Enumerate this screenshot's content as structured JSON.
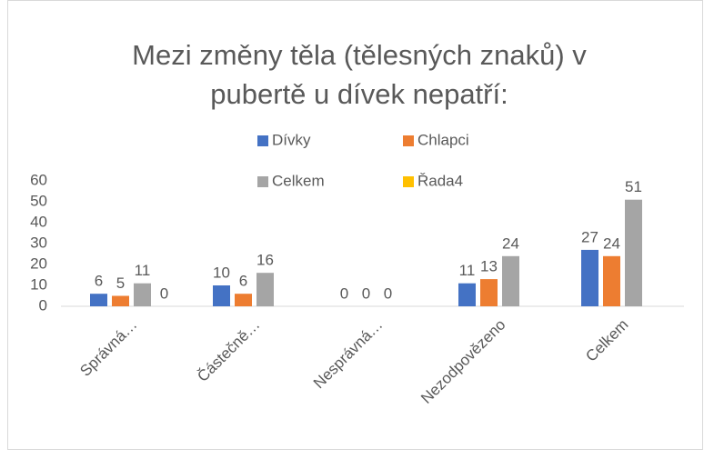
{
  "chart_data": {
    "type": "bar",
    "title": "Mezi změny těla (tělesných znaků) v pubertě u dívek nepatří:",
    "title_lines": [
      "Mezi změny těla (tělesných znaků) v",
      "pubertě u dívek nepatří:"
    ],
    "categories": [
      "Správná…",
      "Částečně…",
      "Nesprávná…",
      "Nezodpovězeno",
      "Celkem"
    ],
    "series": [
      {
        "name": "Dívky",
        "color": "#4472c4",
        "values": [
          6,
          10,
          0,
          11,
          27
        ]
      },
      {
        "name": "Chlapci",
        "color": "#ed7d31",
        "values": [
          5,
          6,
          0,
          13,
          24
        ]
      },
      {
        "name": "Celkem",
        "color": "#a5a5a5",
        "values": [
          11,
          16,
          0,
          24,
          51
        ]
      },
      {
        "name": "Řada4",
        "color": "#ffc000",
        "values": [
          0,
          null,
          null,
          null,
          null
        ]
      }
    ],
    "ylim": [
      0,
      60
    ],
    "yticks": [
      0,
      10,
      20,
      30,
      40,
      50,
      60
    ],
    "grid": false,
    "legend": "top",
    "data_labels": true
  }
}
